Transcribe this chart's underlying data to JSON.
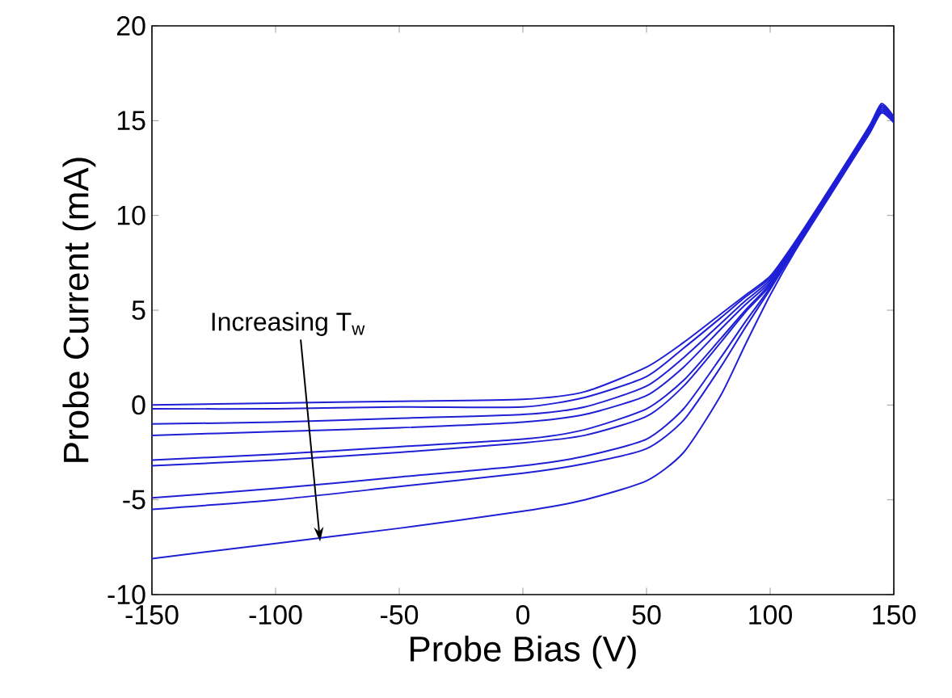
{
  "chart_data": {
    "type": "line",
    "xlabel": "Probe Bias (V)",
    "ylabel": "Probe Current (mA)",
    "x": [
      -150,
      -100,
      -50,
      0,
      25,
      50,
      65,
      80,
      90,
      100,
      110,
      125,
      140,
      145,
      150
    ],
    "series": [
      {
        "color": "#1f1fd6",
        "values": [
          0.0,
          0.1,
          0.2,
          0.3,
          0.7,
          2.0,
          3.3,
          4.8,
          5.8,
          6.8,
          8.6,
          11.6,
          14.7,
          15.9,
          15.2
        ]
      },
      {
        "color": "#1f1fd6",
        "values": [
          -0.2,
          -0.2,
          -0.1,
          -0.1,
          0.4,
          1.5,
          3.0,
          4.6,
          5.7,
          6.7,
          8.5,
          11.5,
          14.6,
          15.8,
          15.1
        ]
      },
      {
        "color": "#1f1fd6",
        "values": [
          -1.0,
          -0.9,
          -0.7,
          -0.5,
          -0.1,
          1.0,
          2.5,
          4.3,
          5.5,
          6.6,
          8.5,
          11.5,
          14.6,
          15.8,
          15.1
        ]
      },
      {
        "color": "#1f1fd6",
        "values": [
          -1.6,
          -1.4,
          -1.2,
          -0.9,
          -0.5,
          0.5,
          2.0,
          4.0,
          5.3,
          6.5,
          8.4,
          11.5,
          14.5,
          15.7,
          15.0
        ]
      },
      {
        "color": "#1f1fd6",
        "values": [
          -2.9,
          -2.6,
          -2.2,
          -1.8,
          -1.3,
          -0.2,
          1.3,
          3.5,
          5.0,
          6.4,
          8.4,
          11.4,
          14.5,
          15.6,
          15.0
        ]
      },
      {
        "color": "#1f1fd6",
        "values": [
          -3.2,
          -2.9,
          -2.5,
          -2.0,
          -1.6,
          -0.6,
          1.0,
          3.3,
          4.9,
          6.3,
          8.3,
          11.4,
          14.4,
          15.6,
          15.0
        ]
      },
      {
        "color": "#1f1fd6",
        "values": [
          -4.9,
          -4.4,
          -3.8,
          -3.2,
          -2.7,
          -1.8,
          -0.2,
          2.5,
          4.4,
          6.2,
          8.3,
          11.3,
          14.4,
          15.5,
          15.0
        ]
      },
      {
        "color": "#1f1fd6",
        "values": [
          -5.5,
          -5.0,
          -4.3,
          -3.6,
          -3.1,
          -2.3,
          -0.8,
          2.0,
          4.1,
          6.1,
          8.2,
          11.3,
          14.3,
          15.5,
          14.9
        ]
      },
      {
        "color": "#1f1fd6",
        "values": [
          -8.1,
          -7.3,
          -6.5,
          -5.6,
          -5.0,
          -4.0,
          -2.5,
          0.5,
          3.2,
          5.8,
          8.1,
          11.2,
          14.3,
          15.4,
          14.9
        ]
      }
    ],
    "xlim": [
      -150,
      150
    ],
    "ylim": [
      -10,
      20
    ],
    "xticks": [
      -150,
      -100,
      -50,
      0,
      50,
      100,
      150
    ],
    "yticks": [
      -10,
      -5,
      0,
      5,
      10,
      15,
      20
    ],
    "annotations": [
      {
        "text": "Increasing T$_{w}$",
        "x": -82,
        "y": -7.2
      }
    ],
    "grid": false,
    "marker": "none",
    "line_style": "solid"
  }
}
